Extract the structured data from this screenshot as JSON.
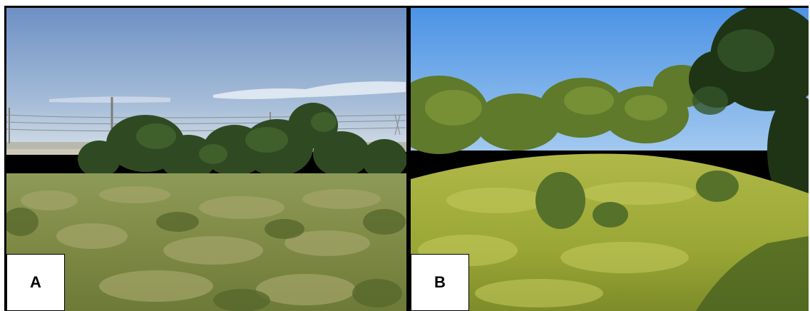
{
  "panels": [
    {
      "id": "A",
      "label": "A",
      "scene": "grassland-with-tree-clump",
      "sky_top": "#6f93c7",
      "sky_bottom": "#c7d6e6",
      "grass": "#8f9a4e"
    },
    {
      "id": "B",
      "label": "B",
      "scene": "shrubland-slope",
      "sky_top": "#4f96e6",
      "sky_bottom": "#9fc7f0",
      "grass": "#a8b33a"
    }
  ]
}
